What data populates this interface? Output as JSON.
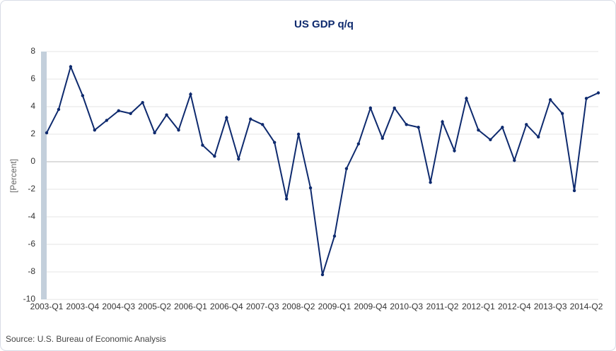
{
  "chart_data": {
    "type": "line",
    "title": "US GDP q/q",
    "y_label": "[Percent]",
    "source": "Source: U.S. Bureau of Economic  Analysis",
    "categories": [
      "2003-Q1",
      null,
      null,
      "2003-Q4",
      null,
      null,
      "2004-Q3",
      null,
      null,
      "2005-Q2",
      null,
      null,
      "2006-Q1",
      null,
      null,
      "2006-Q4",
      null,
      null,
      "2007-Q3",
      null,
      null,
      "2008-Q2",
      null,
      null,
      "2009-Q1",
      null,
      null,
      "2009-Q4",
      null,
      null,
      "2010-Q3",
      null,
      null,
      "2011-Q2",
      null,
      null,
      "2012-Q1",
      null,
      null,
      "2012-Q4",
      null,
      null,
      "2013-Q3",
      null,
      null,
      "2014-Q2",
      null
    ],
    "series": [
      {
        "name": "US GDP q/q",
        "color": "#0e2a6e",
        "values": [
          2.1,
          3.8,
          6.9,
          4.8,
          2.3,
          3.0,
          3.7,
          3.5,
          4.3,
          2.1,
          3.4,
          2.3,
          4.9,
          1.2,
          0.4,
          3.2,
          0.2,
          3.1,
          2.7,
          1.4,
          -2.7,
          2.0,
          -1.9,
          -8.2,
          -5.4,
          -0.5,
          1.3,
          3.9,
          1.7,
          3.9,
          2.7,
          2.5,
          -1.5,
          2.9,
          0.8,
          4.6,
          2.3,
          1.6,
          2.5,
          0.1,
          2.7,
          1.8,
          4.5,
          3.5,
          -2.1,
          4.6,
          5.0
        ]
      }
    ],
    "ylim": [
      -10,
      8
    ],
    "yticks": [
      -10,
      -8,
      -6,
      -4,
      -2,
      0,
      2,
      4,
      6,
      8
    ],
    "grid": true
  }
}
